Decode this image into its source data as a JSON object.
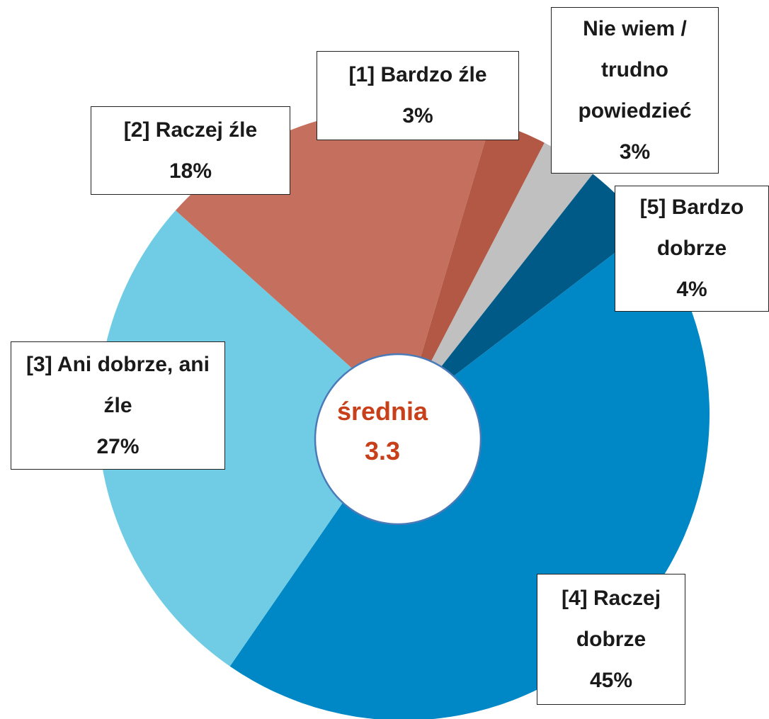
{
  "chart_data": {
    "type": "pie",
    "categories": [
      "Nie wiem / trudno powiedzieć",
      "[5] Bardzo dobrze",
      "[4] Raczej dobrze",
      "[3] Ani dobrze, ani źle",
      "[2] Raczej źle",
      "[1] Bardzo źle"
    ],
    "values": [
      3,
      4,
      45,
      27,
      18,
      3
    ],
    "value_labels": [
      "3%",
      "4%",
      "45%",
      "27%",
      "18%",
      "3%"
    ],
    "colors": [
      "#c0c0c0",
      "#005a87",
      "#0088c6",
      "#70cce4",
      "#c5705e",
      "#b35845"
    ],
    "center_label": "średnia",
    "center_value": 3.3
  }
}
